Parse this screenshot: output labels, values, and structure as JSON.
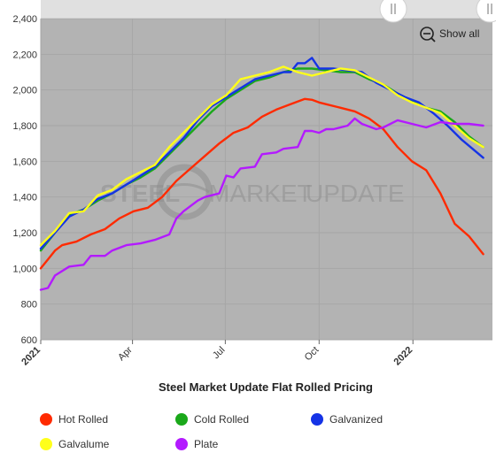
{
  "chart_data": {
    "type": "line",
    "title": "Steel Market Update Flat Rolled Pricing",
    "watermark": {
      "bold": "STEEL",
      "light1": "MARKET",
      "light2": "UPDATE"
    },
    "show_all_label": "Show all",
    "x_range": [
      "2021-01-01",
      "2022-03-20"
    ],
    "ylim": [
      600,
      2400
    ],
    "y_ticks": [
      600,
      800,
      1000,
      1200,
      1400,
      1600,
      1800,
      2000,
      2200,
      2400
    ],
    "x_ticks": [
      {
        "date": "2021-01-01",
        "label": "2021",
        "bold": true
      },
      {
        "date": "2021-04-01",
        "label": "Apr",
        "bold": false
      },
      {
        "date": "2021-07-01",
        "label": "Jul",
        "bold": false
      },
      {
        "date": "2021-10-01",
        "label": "Oct",
        "bold": false
      },
      {
        "date": "2022-01-01",
        "label": "2022",
        "bold": true
      }
    ],
    "grid": true,
    "legend_position": "bottom",
    "background_color": "#b3b3b3",
    "series": [
      {
        "name": "Hot Rolled",
        "color": "#ff2a00",
        "points": [
          [
            "2021-01-01",
            1000
          ],
          [
            "2021-01-08",
            1050
          ],
          [
            "2021-01-15",
            1100
          ],
          [
            "2021-01-22",
            1130
          ],
          [
            "2021-02-05",
            1150
          ],
          [
            "2021-02-19",
            1190
          ],
          [
            "2021-03-05",
            1220
          ],
          [
            "2021-03-19",
            1280
          ],
          [
            "2021-04-02",
            1320
          ],
          [
            "2021-04-16",
            1340
          ],
          [
            "2021-04-30",
            1400
          ],
          [
            "2021-05-14",
            1490
          ],
          [
            "2021-05-28",
            1560
          ],
          [
            "2021-06-11",
            1630
          ],
          [
            "2021-06-25",
            1700
          ],
          [
            "2021-07-09",
            1760
          ],
          [
            "2021-07-23",
            1790
          ],
          [
            "2021-08-06",
            1850
          ],
          [
            "2021-08-20",
            1890
          ],
          [
            "2021-09-03",
            1920
          ],
          [
            "2021-09-17",
            1950
          ],
          [
            "2021-09-24",
            1945
          ],
          [
            "2021-10-01",
            1930
          ],
          [
            "2021-10-08",
            1920
          ],
          [
            "2021-10-22",
            1900
          ],
          [
            "2021-11-05",
            1880
          ],
          [
            "2021-11-19",
            1840
          ],
          [
            "2021-12-03",
            1780
          ],
          [
            "2021-12-17",
            1680
          ],
          [
            "2021-12-31",
            1600
          ],
          [
            "2022-01-14",
            1550
          ],
          [
            "2022-01-28",
            1420
          ],
          [
            "2022-02-11",
            1250
          ],
          [
            "2022-02-25",
            1180
          ],
          [
            "2022-03-11",
            1080
          ]
        ]
      },
      {
        "name": "Cold Rolled",
        "color": "#1aa81a",
        "points": [
          [
            "2021-01-01",
            1100
          ],
          [
            "2021-01-15",
            1200
          ],
          [
            "2021-01-29",
            1300
          ],
          [
            "2021-02-12",
            1330
          ],
          [
            "2021-02-26",
            1380
          ],
          [
            "2021-03-12",
            1420
          ],
          [
            "2021-03-26",
            1470
          ],
          [
            "2021-04-09",
            1510
          ],
          [
            "2021-04-23",
            1560
          ],
          [
            "2021-05-07",
            1640
          ],
          [
            "2021-05-21",
            1720
          ],
          [
            "2021-06-04",
            1800
          ],
          [
            "2021-06-18",
            1880
          ],
          [
            "2021-07-02",
            1950
          ],
          [
            "2021-07-16",
            2000
          ],
          [
            "2021-07-30",
            2050
          ],
          [
            "2021-08-13",
            2070
          ],
          [
            "2021-08-27",
            2100
          ],
          [
            "2021-09-10",
            2120
          ],
          [
            "2021-09-24",
            2120
          ],
          [
            "2021-10-08",
            2110
          ],
          [
            "2021-10-22",
            2100
          ],
          [
            "2021-11-05",
            2100
          ],
          [
            "2021-11-19",
            2060
          ],
          [
            "2021-12-03",
            2030
          ],
          [
            "2021-12-17",
            1980
          ],
          [
            "2021-12-31",
            1940
          ],
          [
            "2022-01-14",
            1900
          ],
          [
            "2022-01-28",
            1880
          ],
          [
            "2022-02-11",
            1820
          ],
          [
            "2022-02-25",
            1740
          ],
          [
            "2022-03-11",
            1680
          ]
        ]
      },
      {
        "name": "Galvanized",
        "color": "#1533e6",
        "points": [
          [
            "2021-01-01",
            1110
          ],
          [
            "2021-01-15",
            1200
          ],
          [
            "2021-01-29",
            1290
          ],
          [
            "2021-02-12",
            1330
          ],
          [
            "2021-02-26",
            1390
          ],
          [
            "2021-03-12",
            1420
          ],
          [
            "2021-03-26",
            1470
          ],
          [
            "2021-04-09",
            1520
          ],
          [
            "2021-04-23",
            1570
          ],
          [
            "2021-05-07",
            1650
          ],
          [
            "2021-05-21",
            1730
          ],
          [
            "2021-06-04",
            1830
          ],
          [
            "2021-06-18",
            1910
          ],
          [
            "2021-07-02",
            1960
          ],
          [
            "2021-07-16",
            2010
          ],
          [
            "2021-07-30",
            2060
          ],
          [
            "2021-08-13",
            2080
          ],
          [
            "2021-08-27",
            2100
          ],
          [
            "2021-09-03",
            2100
          ],
          [
            "2021-09-10",
            2150
          ],
          [
            "2021-09-17",
            2150
          ],
          [
            "2021-09-24",
            2180
          ],
          [
            "2021-10-01",
            2120
          ],
          [
            "2021-10-15",
            2120
          ],
          [
            "2021-10-29",
            2110
          ],
          [
            "2021-11-12",
            2100
          ],
          [
            "2021-11-26",
            2040
          ],
          [
            "2021-12-10",
            2000
          ],
          [
            "2021-12-24",
            1960
          ],
          [
            "2022-01-07",
            1930
          ],
          [
            "2022-01-21",
            1870
          ],
          [
            "2022-02-04",
            1800
          ],
          [
            "2022-02-18",
            1720
          ],
          [
            "2022-03-11",
            1620
          ]
        ]
      },
      {
        "name": "Galvalume",
        "color": "#ffff1a",
        "points": [
          [
            "2021-01-01",
            1130
          ],
          [
            "2021-01-15",
            1210
          ],
          [
            "2021-01-29",
            1310
          ],
          [
            "2021-02-12",
            1320
          ],
          [
            "2021-02-26",
            1410
          ],
          [
            "2021-03-12",
            1440
          ],
          [
            "2021-03-26",
            1500
          ],
          [
            "2021-04-09",
            1540
          ],
          [
            "2021-04-23",
            1580
          ],
          [
            "2021-05-07",
            1680
          ],
          [
            "2021-05-21",
            1760
          ],
          [
            "2021-06-04",
            1840
          ],
          [
            "2021-06-18",
            1920
          ],
          [
            "2021-07-02",
            1970
          ],
          [
            "2021-07-16",
            2060
          ],
          [
            "2021-07-30",
            2080
          ],
          [
            "2021-08-13",
            2100
          ],
          [
            "2021-08-27",
            2130
          ],
          [
            "2021-09-10",
            2100
          ],
          [
            "2021-09-24",
            2080
          ],
          [
            "2021-10-08",
            2100
          ],
          [
            "2021-10-22",
            2120
          ],
          [
            "2021-11-05",
            2110
          ],
          [
            "2021-11-19",
            2070
          ],
          [
            "2021-12-03",
            2030
          ],
          [
            "2021-12-17",
            1970
          ],
          [
            "2021-12-31",
            1930
          ],
          [
            "2022-01-14",
            1900
          ],
          [
            "2022-01-28",
            1870
          ],
          [
            "2022-02-11",
            1800
          ],
          [
            "2022-02-25",
            1730
          ],
          [
            "2022-03-11",
            1680
          ]
        ]
      },
      {
        "name": "Plate",
        "color": "#b31aff",
        "points": [
          [
            "2021-01-01",
            880
          ],
          [
            "2021-01-08",
            890
          ],
          [
            "2021-01-15",
            960
          ],
          [
            "2021-01-29",
            1010
          ],
          [
            "2021-02-12",
            1020
          ],
          [
            "2021-02-19",
            1070
          ],
          [
            "2021-03-05",
            1070
          ],
          [
            "2021-03-12",
            1100
          ],
          [
            "2021-03-26",
            1130
          ],
          [
            "2021-04-09",
            1140
          ],
          [
            "2021-04-23",
            1160
          ],
          [
            "2021-05-07",
            1190
          ],
          [
            "2021-05-14",
            1280
          ],
          [
            "2021-05-21",
            1320
          ],
          [
            "2021-06-04",
            1380
          ],
          [
            "2021-06-11",
            1400
          ],
          [
            "2021-06-25",
            1420
          ],
          [
            "2021-07-02",
            1520
          ],
          [
            "2021-07-09",
            1510
          ],
          [
            "2021-07-16",
            1560
          ],
          [
            "2021-07-30",
            1570
          ],
          [
            "2021-08-06",
            1640
          ],
          [
            "2021-08-20",
            1650
          ],
          [
            "2021-08-27",
            1670
          ],
          [
            "2021-09-10",
            1680
          ],
          [
            "2021-09-17",
            1770
          ],
          [
            "2021-09-24",
            1770
          ],
          [
            "2021-10-01",
            1760
          ],
          [
            "2021-10-08",
            1780
          ],
          [
            "2021-10-15",
            1780
          ],
          [
            "2021-10-29",
            1800
          ],
          [
            "2021-11-05",
            1840
          ],
          [
            "2021-11-12",
            1810
          ],
          [
            "2021-11-26",
            1780
          ],
          [
            "2021-12-03",
            1790
          ],
          [
            "2021-12-17",
            1830
          ],
          [
            "2021-12-31",
            1810
          ],
          [
            "2022-01-14",
            1790
          ],
          [
            "2022-01-28",
            1820
          ],
          [
            "2022-02-11",
            1810
          ],
          [
            "2022-02-25",
            1810
          ],
          [
            "2022-03-11",
            1800
          ]
        ]
      }
    ]
  }
}
